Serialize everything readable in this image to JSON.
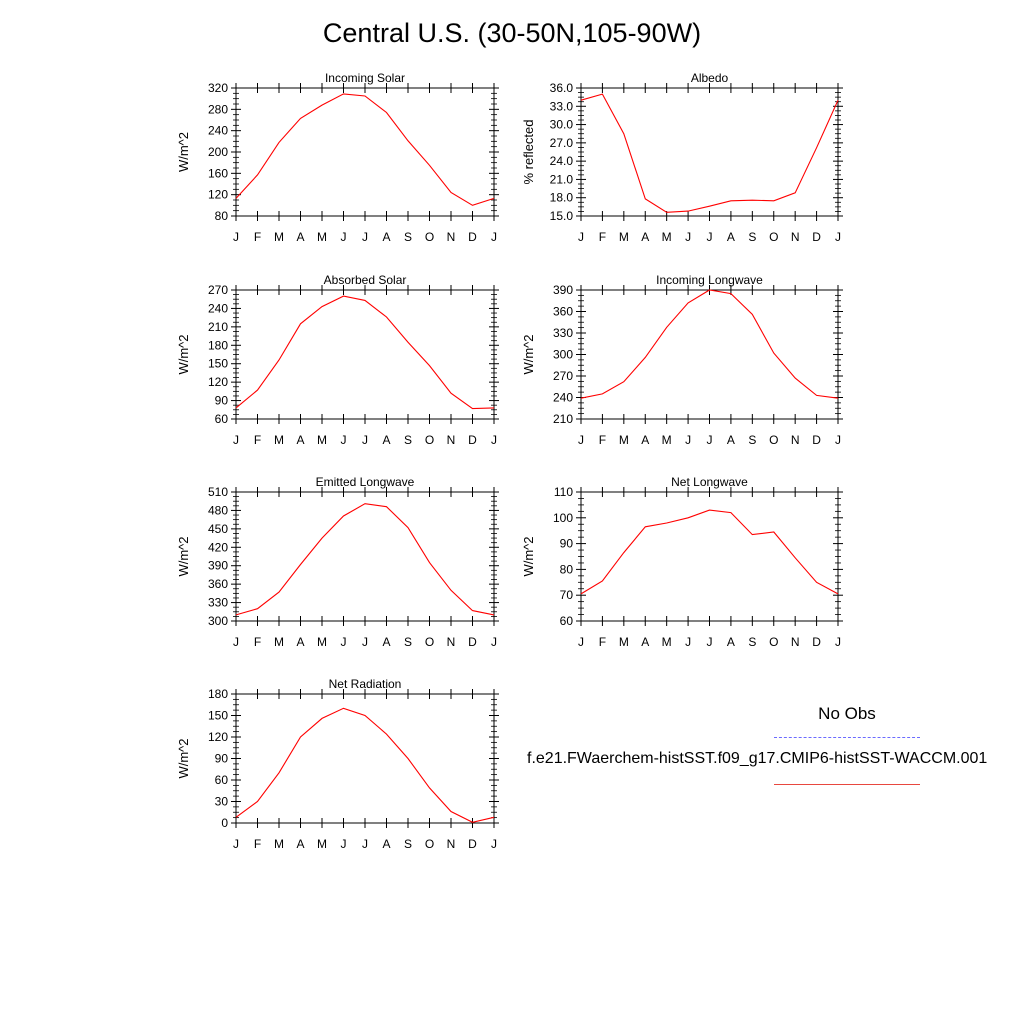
{
  "title": "Central U.S. (30-50N,105-90W)",
  "legend": {
    "obs_label": "No Obs",
    "case_label": "f.e21.FWaerchem-histSST.f09_g17.CMIP6-histSST-WACCM.001",
    "obs_color": "#6b6bff",
    "model_color": "#ff0000"
  },
  "chart_data": [
    {
      "type": "line",
      "title": "Incoming Solar",
      "ylabel": "W/m^2",
      "categories": [
        "J",
        "F",
        "M",
        "A",
        "M",
        "J",
        "J",
        "A",
        "S",
        "O",
        "N",
        "D",
        "J"
      ],
      "ylim": [
        80,
        320
      ],
      "yticks": [
        "80",
        "120",
        "160",
        "200",
        "240",
        "280",
        "320"
      ],
      "series": [
        {
          "values": [
            113,
            157,
            218,
            263,
            288,
            309,
            305,
            274,
            221,
            175,
            124,
            100,
            113
          ]
        }
      ]
    },
    {
      "type": "line",
      "title": "Albedo",
      "ylabel": "% reflected",
      "categories": [
        "J",
        "F",
        "M",
        "A",
        "M",
        "J",
        "J",
        "A",
        "S",
        "O",
        "N",
        "D",
        "J"
      ],
      "ylim": [
        15.0,
        36.0
      ],
      "yticks": [
        "15.0",
        "18.0",
        "21.0",
        "24.0",
        "27.0",
        "30.0",
        "33.0",
        "36.0"
      ],
      "series": [
        {
          "values": [
            34.0,
            35.0,
            28.5,
            17.8,
            15.6,
            15.8,
            16.6,
            17.5,
            17.6,
            17.5,
            18.8,
            26.2,
            34.0
          ]
        }
      ]
    },
    {
      "type": "line",
      "title": "Absorbed Solar",
      "ylabel": "W/m^2",
      "categories": [
        "J",
        "F",
        "M",
        "A",
        "M",
        "J",
        "J",
        "A",
        "S",
        "O",
        "N",
        "D",
        "J"
      ],
      "ylim": [
        60,
        270
      ],
      "yticks": [
        "60",
        "90",
        "120",
        "150",
        "180",
        "210",
        "240",
        "270"
      ],
      "series": [
        {
          "values": [
            78,
            107,
            156,
            215,
            243,
            260,
            253,
            226,
            185,
            147,
            102,
            77,
            78
          ]
        }
      ]
    },
    {
      "type": "line",
      "title": "Incoming Longwave",
      "ylabel": "W/m^2",
      "categories": [
        "J",
        "F",
        "M",
        "A",
        "M",
        "J",
        "J",
        "A",
        "S",
        "O",
        "N",
        "D",
        "J"
      ],
      "ylim": [
        210,
        390
      ],
      "yticks": [
        "210",
        "240",
        "270",
        "300",
        "330",
        "360",
        "390"
      ],
      "series": [
        {
          "values": [
            239,
            245,
            262,
            296,
            338,
            372,
            390,
            385,
            356,
            302,
            267,
            243,
            239
          ]
        }
      ]
    },
    {
      "type": "line",
      "title": "Emitted Longwave",
      "ylabel": "W/m^2",
      "categories": [
        "J",
        "F",
        "M",
        "A",
        "M",
        "J",
        "J",
        "A",
        "S",
        "O",
        "N",
        "D",
        "J"
      ],
      "ylim": [
        300,
        510
      ],
      "yticks": [
        "300",
        "330",
        "360",
        "390",
        "420",
        "450",
        "480",
        "510"
      ],
      "series": [
        {
          "values": [
            310,
            320,
            347,
            392,
            435,
            471,
            491,
            486,
            452,
            395,
            350,
            317,
            310
          ]
        }
      ]
    },
    {
      "type": "line",
      "title": "Net Longwave",
      "ylabel": "W/m^2",
      "categories": [
        "J",
        "F",
        "M",
        "A",
        "M",
        "J",
        "J",
        "A",
        "S",
        "O",
        "N",
        "D",
        "J"
      ],
      "ylim": [
        60,
        110
      ],
      "yticks": [
        "60",
        "70",
        "80",
        "90",
        "100",
        "110"
      ],
      "series": [
        {
          "values": [
            70.5,
            75.5,
            86.5,
            96.5,
            98,
            100,
            103,
            102,
            93.5,
            94.5,
            84.5,
            75,
            70.5
          ]
        }
      ]
    },
    {
      "type": "line",
      "title": "Net Radiation",
      "ylabel": "W/m^2",
      "categories": [
        "J",
        "F",
        "M",
        "A",
        "M",
        "J",
        "J",
        "A",
        "S",
        "O",
        "N",
        "D",
        "J"
      ],
      "ylim": [
        0,
        180
      ],
      "yticks": [
        "0",
        "30",
        "60",
        "90",
        "120",
        "150",
        "180"
      ],
      "series": [
        {
          "values": [
            8,
            30,
            70,
            120,
            146,
            160,
            150,
            124,
            90,
            49,
            16,
            1,
            8
          ]
        }
      ]
    }
  ]
}
